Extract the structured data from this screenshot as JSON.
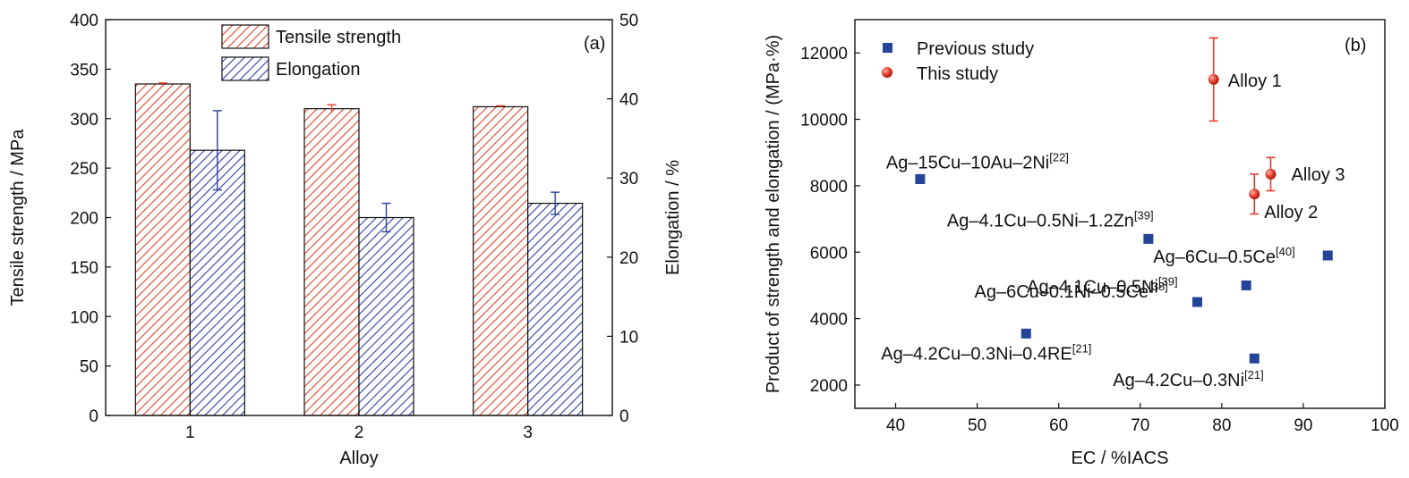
{
  "colors": {
    "tensile": "#e0452f",
    "elongation": "#2f3f9e",
    "previous": "#24449a",
    "this_study": "#e53b2a"
  },
  "chart_data": [
    {
      "type": "bar",
      "panel_label": "(a)",
      "xlabel": "Alloy",
      "ylabel": "Tensile strength / MPa",
      "ylabel_right": "Elongation / %",
      "categories": [
        "1",
        "2",
        "3"
      ],
      "ylim": [
        0,
        400
      ],
      "ylim_right": [
        0,
        50
      ],
      "yticks": [
        "0",
        "50",
        "100",
        "150",
        "200",
        "250",
        "300",
        "350",
        "400"
      ],
      "yticks_right": [
        "0",
        "10",
        "20",
        "30",
        "40",
        "50"
      ],
      "legend_position": "top-center",
      "series": [
        {
          "name": "Tensile strength",
          "axis": "left",
          "values": [
            335,
            310,
            312
          ],
          "errors": [
            1,
            4,
            1
          ]
        },
        {
          "name": "Elongation",
          "axis": "right",
          "values": [
            33.5,
            25.0,
            26.8
          ],
          "errors": [
            5.0,
            1.8,
            1.4
          ]
        }
      ]
    },
    {
      "type": "scatter",
      "panel_label": "(b)",
      "xlabel": "EC / %IACS",
      "ylabel": "Product of strength and elongation / (MPa·%)",
      "xlim": [
        35,
        100
      ],
      "ylim": [
        1300,
        13000
      ],
      "xticks": [
        "40",
        "50",
        "60",
        "70",
        "80",
        "90",
        "100"
      ],
      "yticks": [
        "2000",
        "4000",
        "6000",
        "8000",
        "10000",
        "12000"
      ],
      "legend_position": "top-left",
      "series": [
        {
          "name": "Previous study",
          "marker": "square",
          "points": [
            {
              "x": 43,
              "y": 8200,
              "label": "Ag–15Cu–10Au–2Ni",
              "ref": "[22]"
            },
            {
              "x": 71,
              "y": 6400,
              "label": "Ag–4.1Cu–0.5Ni–1.2Zn",
              "ref": "[39]"
            },
            {
              "x": 93,
              "y": 5900,
              "label": "Ag–6Cu–0.5Ce",
              "ref": "[40]"
            },
            {
              "x": 83,
              "y": 5000,
              "label": "Ag–4.1Cu–0.5Ni",
              "ref": "[39]"
            },
            {
              "x": 77,
              "y": 4500,
              "label": "Ag–6Cu–0.1Ni–0.5Ce",
              "ref": "[38]"
            },
            {
              "x": 56,
              "y": 3550,
              "label": "Ag–4.2Cu–0.3Ni–0.4RE",
              "ref": "[21]"
            },
            {
              "x": 84,
              "y": 2800,
              "label": "Ag–4.2Cu–0.3Ni",
              "ref": "[21]"
            }
          ]
        },
        {
          "name": "This study",
          "marker": "circle",
          "points": [
            {
              "x": 79,
              "y": 11200,
              "err": 1250,
              "label": "Alloy 1",
              "ref": ""
            },
            {
              "x": 84,
              "y": 7750,
              "err": 600,
              "label": "Alloy 2",
              "ref": ""
            },
            {
              "x": 86,
              "y": 8350,
              "err": 500,
              "label": "Alloy 3",
              "ref": ""
            }
          ]
        }
      ]
    }
  ]
}
